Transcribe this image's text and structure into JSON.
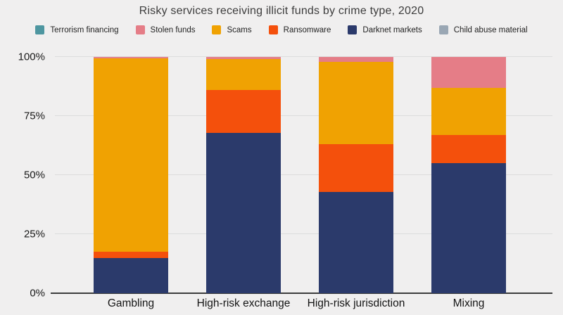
{
  "title": "Risky services receiving illicit funds by crime type, 2020",
  "colors": {
    "background": "#f0efef",
    "grid": "#dcdcdc",
    "axis": "#3c3c3c",
    "title_text": "#3d3d3d",
    "tick_text": "#181818"
  },
  "chart_data": {
    "type": "bar",
    "stacked": true,
    "stack_unit": "percent",
    "title": "Risky services receiving illicit funds by crime type, 2020",
    "categories": [
      "Gambling",
      "High-risk exchange",
      "High-risk jurisdiction",
      "Mixing"
    ],
    "series": [
      {
        "name": "Terrorism financing",
        "color": "#4E96A0",
        "values": [
          0,
          0,
          0,
          0
        ]
      },
      {
        "name": "Stolen funds",
        "color": "#E57D87",
        "values": [
          0.5,
          1,
          2,
          13
        ]
      },
      {
        "name": "Scams",
        "color": "#F0A202",
        "values": [
          82,
          13,
          35,
          20
        ]
      },
      {
        "name": "Ransomware",
        "color": "#F4500C",
        "values": [
          2.5,
          18,
          20,
          12
        ]
      },
      {
        "name": "Darknet markets",
        "color": "#2B3A6B",
        "values": [
          15,
          68,
          43,
          55
        ]
      },
      {
        "name": "Child abuse material",
        "color": "#9AA7B4",
        "values": [
          0,
          0,
          0,
          0
        ]
      }
    ],
    "stack_order_bottom_to_top": [
      "Child abuse material",
      "Darknet markets",
      "Ransomware",
      "Scams",
      "Stolen funds",
      "Terrorism financing"
    ],
    "y_ticks": [
      {
        "label": "0%",
        "value": 0
      },
      {
        "label": "25%",
        "value": 25
      },
      {
        "label": "50%",
        "value": 50
      },
      {
        "label": "75%",
        "value": 75
      },
      {
        "label": "100%",
        "value": 100
      }
    ],
    "ylim": [
      0,
      100
    ],
    "grid": true,
    "legend_position": "top"
  }
}
